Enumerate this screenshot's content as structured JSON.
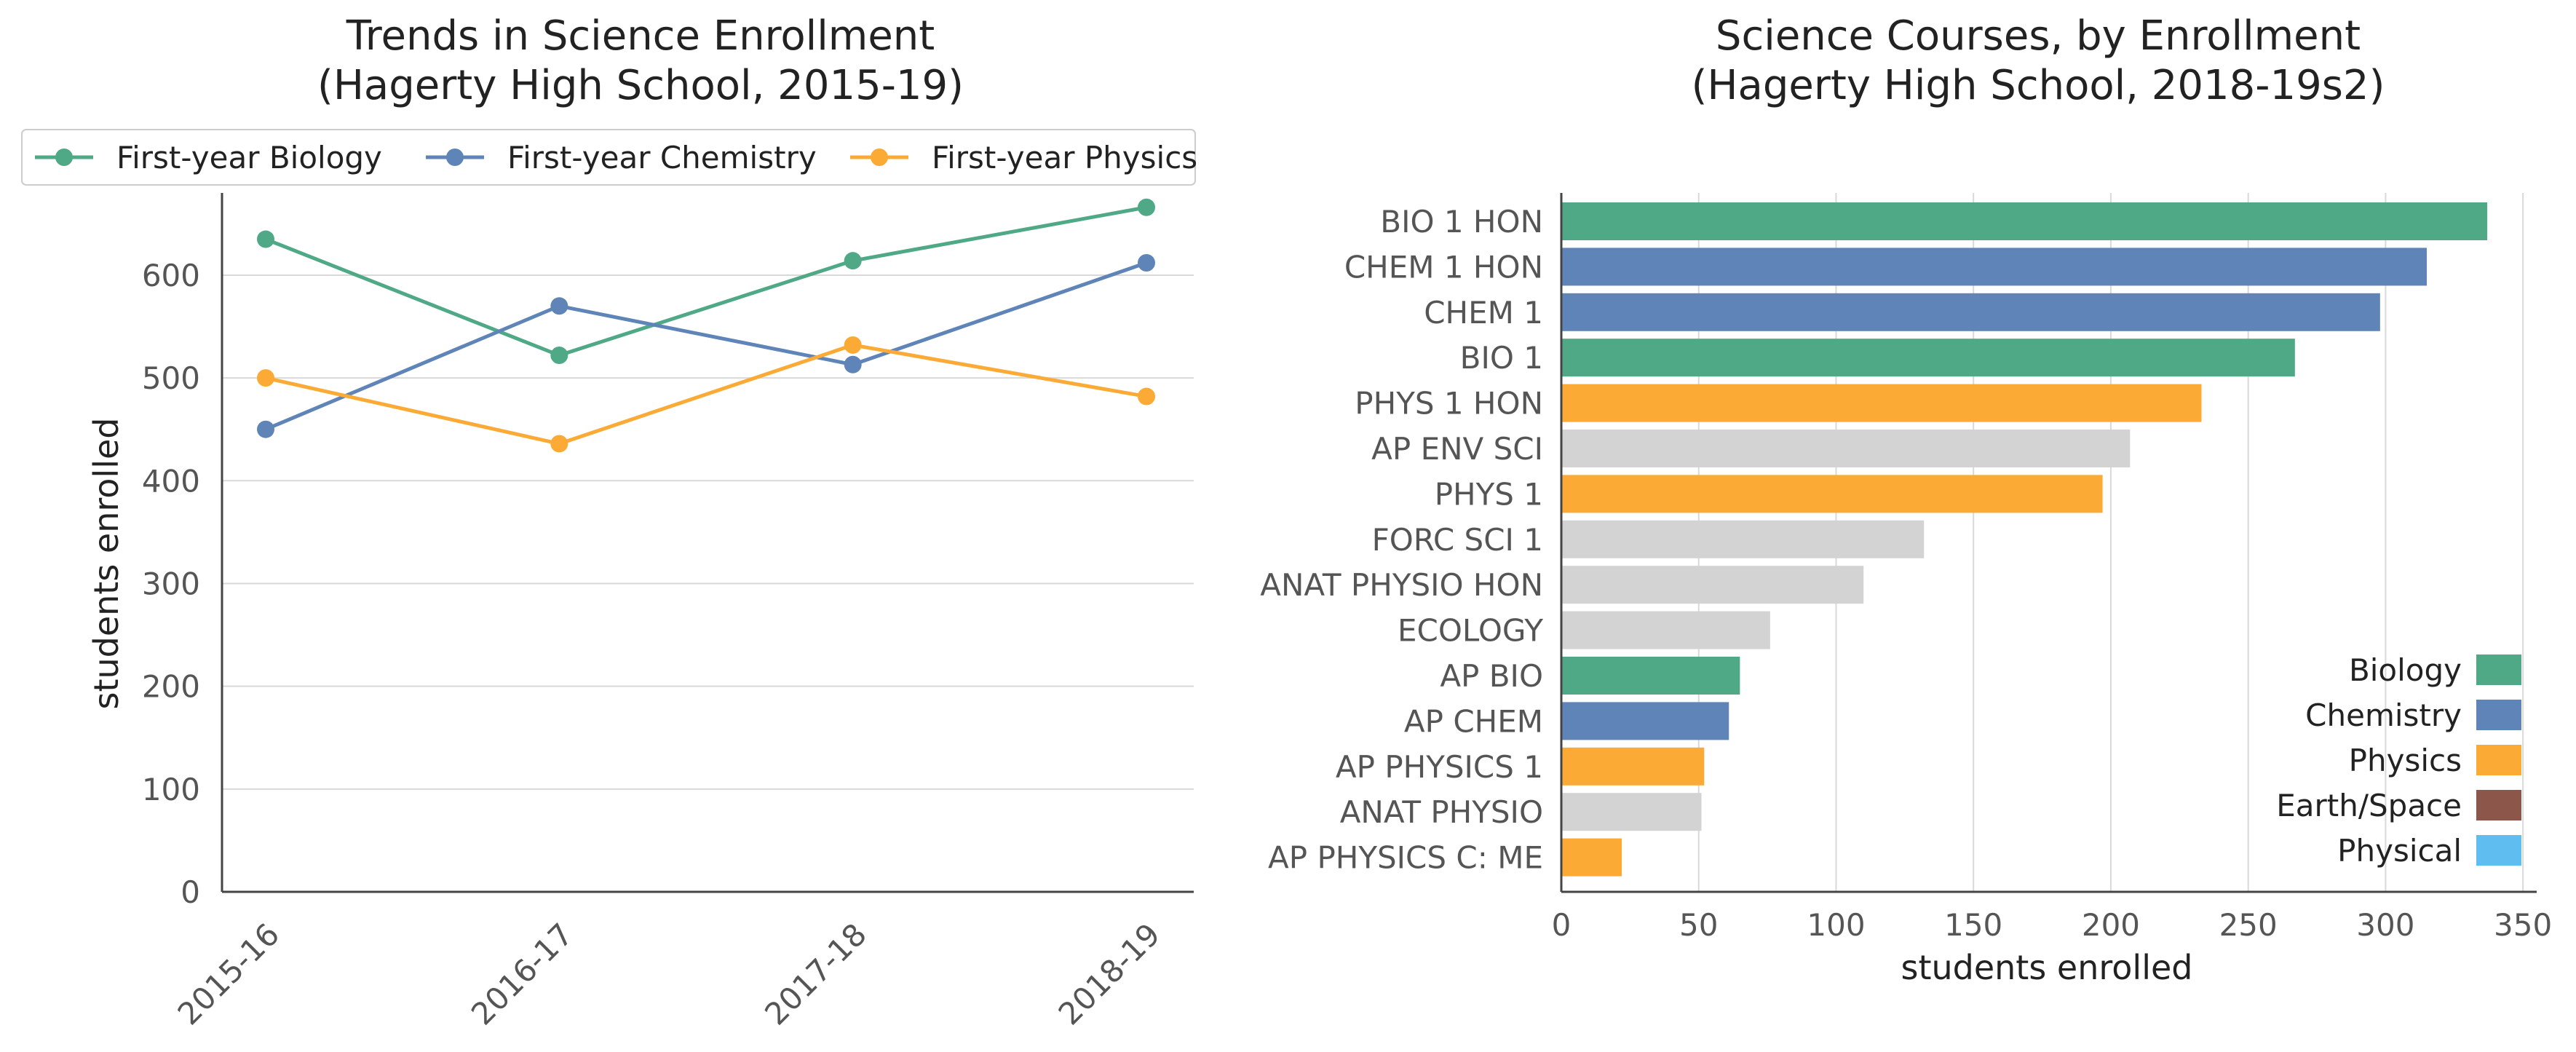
{
  "chart_data": [
    {
      "type": "line",
      "title": "Trends in Science Enrollment\n(Hagerty High School, 2015-19)",
      "title_lines": [
        "Trends in Science Enrollment",
        "(Hagerty High School, 2015-19)"
      ],
      "xlabel": "",
      "ylabel": "students enrolled",
      "categories": [
        "2015-16",
        "2016-17",
        "2017-18",
        "2018-19"
      ],
      "ylim": [
        0,
        680
      ],
      "yticks": [
        0,
        100,
        200,
        300,
        400,
        500,
        600
      ],
      "grid": "horizontal",
      "legend": "top",
      "series": [
        {
          "name": "First-year Biology",
          "color": "#4fa986",
          "values": [
            635,
            522,
            614,
            666
          ]
        },
        {
          "name": "First-year Chemistry",
          "color": "#5f85b8",
          "values": [
            450,
            570,
            513,
            612
          ]
        },
        {
          "name": "First-year Physics",
          "color": "#fbab35",
          "values": [
            500,
            436,
            532,
            482
          ]
        }
      ]
    },
    {
      "type": "bar",
      "orientation": "horizontal",
      "title": "Science Courses, by Enrollment\n(Hagerty High School, 2018-19s2)",
      "title_lines": [
        "Science Courses, by Enrollment",
        "(Hagerty High School, 2018-19s2)"
      ],
      "xlabel": "students enrolled",
      "ylabel": "",
      "xlim": [
        0,
        355
      ],
      "xticks": [
        0,
        50,
        100,
        150,
        200,
        250,
        300,
        350
      ],
      "grid": "vertical",
      "legend": "bottom-right",
      "categories": [
        "BIO 1 HON",
        "CHEM 1 HON",
        "CHEM 1",
        "BIO 1",
        "PHYS 1 HON",
        "AP ENV SCI",
        "PHYS 1",
        "FORC SCI 1",
        "ANAT PHYSIO HON",
        "ECOLOGY",
        "AP BIO",
        "AP CHEM",
        "AP PHYSICS 1",
        "ANAT PHYSIO",
        "AP PHYSICS C: ME"
      ],
      "values": [
        337,
        315,
        298,
        267,
        233,
        207,
        197,
        132,
        110,
        76,
        65,
        61,
        52,
        51,
        22
      ],
      "subjects": [
        "Biology",
        "Chemistry",
        "Chemistry",
        "Biology",
        "Physics",
        "Other",
        "Physics",
        "Other",
        "Other",
        "Other",
        "Biology",
        "Chemistry",
        "Physics",
        "Other",
        "Physics"
      ],
      "subject_colors": {
        "Biology": "#4fa986",
        "Chemistry": "#5f85b8",
        "Physics": "#fbab35",
        "Earth/Space": "#8c564b",
        "Physical": "#5fbdf0",
        "Other": "#d3d3d3"
      },
      "legend_entries": [
        "Biology",
        "Chemistry",
        "Physics",
        "Earth/Space",
        "Physical"
      ]
    }
  ]
}
